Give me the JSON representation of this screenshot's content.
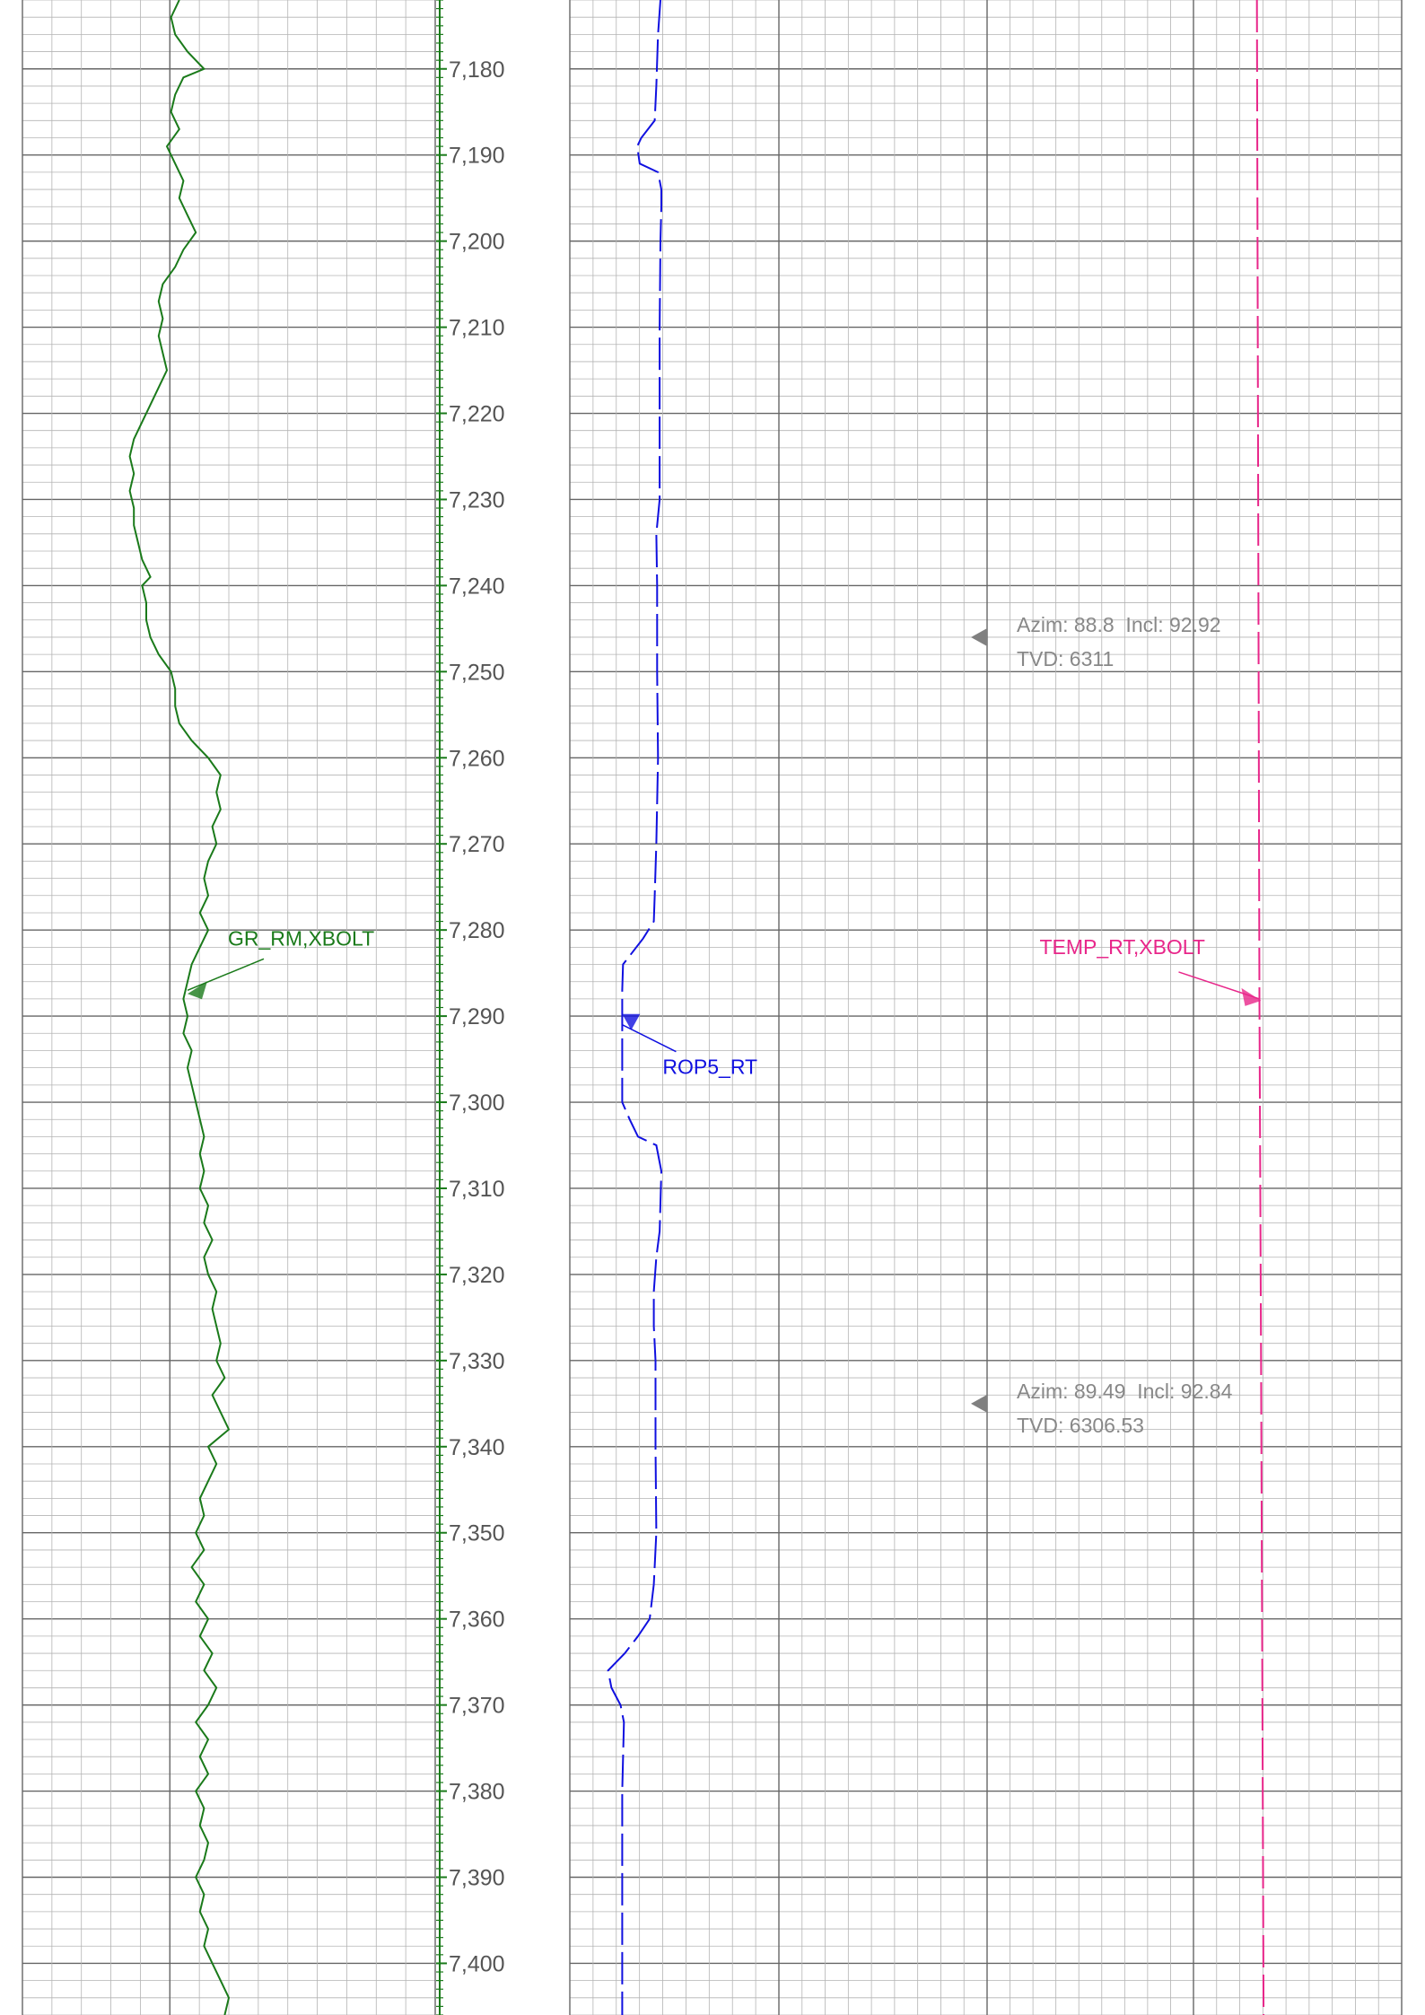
{
  "chart_data": {
    "type": "line",
    "depth_range": [
      7172,
      7406
    ],
    "depth_tick_labels": [
      "7,180",
      "7,190",
      "7,200",
      "7,210",
      "7,220",
      "7,230",
      "7,240",
      "7,250",
      "7,260",
      "7,270",
      "7,280",
      "7,290",
      "7,300",
      "7,310",
      "7,320",
      "7,330",
      "7,340",
      "7,350",
      "7,360",
      "7,370",
      "7,380",
      "7,390",
      "7,400"
    ],
    "depth_ticks": [
      7180,
      7190,
      7200,
      7210,
      7220,
      7230,
      7240,
      7250,
      7260,
      7270,
      7280,
      7290,
      7300,
      7310,
      7320,
      7330,
      7340,
      7350,
      7360,
      7370,
      7380,
      7390,
      7400
    ],
    "grid": true,
    "series": [
      {
        "name": "GR_RM,XBOLT",
        "color": "#1a7a1a",
        "line_style": "solid",
        "track": "left",
        "label_depth": 7287,
        "points": [
          [
            7172,
            0.38
          ],
          [
            7174,
            0.36
          ],
          [
            7176,
            0.37
          ],
          [
            7178,
            0.4
          ],
          [
            7180,
            0.44
          ],
          [
            7181,
            0.39
          ],
          [
            7183,
            0.37
          ],
          [
            7185,
            0.36
          ],
          [
            7187,
            0.38
          ],
          [
            7189,
            0.35
          ],
          [
            7191,
            0.37
          ],
          [
            7193,
            0.39
          ],
          [
            7195,
            0.38
          ],
          [
            7197,
            0.4
          ],
          [
            7199,
            0.42
          ],
          [
            7201,
            0.39
          ],
          [
            7203,
            0.37
          ],
          [
            7205,
            0.34
          ],
          [
            7207,
            0.33
          ],
          [
            7209,
            0.34
          ],
          [
            7211,
            0.33
          ],
          [
            7213,
            0.34
          ],
          [
            7215,
            0.35
          ],
          [
            7217,
            0.33
          ],
          [
            7219,
            0.31
          ],
          [
            7221,
            0.29
          ],
          [
            7223,
            0.27
          ],
          [
            7225,
            0.26
          ],
          [
            7227,
            0.27
          ],
          [
            7229,
            0.26
          ],
          [
            7231,
            0.27
          ],
          [
            7233,
            0.27
          ],
          [
            7235,
            0.28
          ],
          [
            7237,
            0.29
          ],
          [
            7239,
            0.31
          ],
          [
            7240,
            0.29
          ],
          [
            7242,
            0.3
          ],
          [
            7244,
            0.3
          ],
          [
            7246,
            0.31
          ],
          [
            7248,
            0.33
          ],
          [
            7250,
            0.36
          ],
          [
            7252,
            0.37
          ],
          [
            7254,
            0.37
          ],
          [
            7256,
            0.38
          ],
          [
            7258,
            0.41
          ],
          [
            7260,
            0.45
          ],
          [
            7262,
            0.48
          ],
          [
            7264,
            0.47
          ],
          [
            7266,
            0.48
          ],
          [
            7268,
            0.46
          ],
          [
            7270,
            0.47
          ],
          [
            7272,
            0.45
          ],
          [
            7274,
            0.44
          ],
          [
            7276,
            0.45
          ],
          [
            7278,
            0.43
          ],
          [
            7280,
            0.45
          ],
          [
            7282,
            0.43
          ],
          [
            7284,
            0.41
          ],
          [
            7286,
            0.4
          ],
          [
            7288,
            0.39
          ],
          [
            7290,
            0.4
          ],
          [
            7292,
            0.39
          ],
          [
            7294,
            0.41
          ],
          [
            7296,
            0.4
          ],
          [
            7298,
            0.41
          ],
          [
            7300,
            0.42
          ],
          [
            7302,
            0.43
          ],
          [
            7304,
            0.44
          ],
          [
            7306,
            0.43
          ],
          [
            7308,
            0.44
          ],
          [
            7310,
            0.43
          ],
          [
            7312,
            0.45
          ],
          [
            7314,
            0.44
          ],
          [
            7316,
            0.46
          ],
          [
            7318,
            0.44
          ],
          [
            7320,
            0.45
          ],
          [
            7322,
            0.47
          ],
          [
            7324,
            0.46
          ],
          [
            7326,
            0.47
          ],
          [
            7328,
            0.48
          ],
          [
            7330,
            0.47
          ],
          [
            7332,
            0.49
          ],
          [
            7334,
            0.46
          ],
          [
            7336,
            0.48
          ],
          [
            7338,
            0.5
          ],
          [
            7340,
            0.45
          ],
          [
            7342,
            0.47
          ],
          [
            7344,
            0.45
          ],
          [
            7346,
            0.43
          ],
          [
            7348,
            0.44
          ],
          [
            7350,
            0.42
          ],
          [
            7352,
            0.44
          ],
          [
            7354,
            0.41
          ],
          [
            7356,
            0.44
          ],
          [
            7358,
            0.42
          ],
          [
            7360,
            0.45
          ],
          [
            7362,
            0.43
          ],
          [
            7364,
            0.46
          ],
          [
            7366,
            0.44
          ],
          [
            7368,
            0.47
          ],
          [
            7370,
            0.45
          ],
          [
            7372,
            0.42
          ],
          [
            7374,
            0.45
          ],
          [
            7376,
            0.43
          ],
          [
            7378,
            0.45
          ],
          [
            7380,
            0.42
          ],
          [
            7382,
            0.44
          ],
          [
            7384,
            0.43
          ],
          [
            7386,
            0.45
          ],
          [
            7388,
            0.44
          ],
          [
            7390,
            0.42
          ],
          [
            7392,
            0.44
          ],
          [
            7394,
            0.43
          ],
          [
            7396,
            0.45
          ],
          [
            7398,
            0.44
          ],
          [
            7400,
            0.46
          ],
          [
            7402,
            0.48
          ],
          [
            7404,
            0.5
          ],
          [
            7406,
            0.49
          ]
        ]
      },
      {
        "name": "ROP5_RT",
        "color": "#1010e0",
        "line_style": "dashed",
        "track": "right",
        "label_depth": 7291,
        "points": [
          [
            7172,
            0.109
          ],
          [
            7176,
            0.106
          ],
          [
            7182,
            0.104
          ],
          [
            7186,
            0.102
          ],
          [
            7188,
            0.086
          ],
          [
            7189,
            0.081
          ],
          [
            7191,
            0.084
          ],
          [
            7192,
            0.106
          ],
          [
            7194,
            0.11
          ],
          [
            7196,
            0.11
          ],
          [
            7200,
            0.109
          ],
          [
            7210,
            0.108
          ],
          [
            7220,
            0.108
          ],
          [
            7230,
            0.108
          ],
          [
            7234,
            0.104
          ],
          [
            7240,
            0.105
          ],
          [
            7250,
            0.105
          ],
          [
            7260,
            0.106
          ],
          [
            7270,
            0.104
          ],
          [
            7276,
            0.102
          ],
          [
            7279,
            0.101
          ],
          [
            7281,
            0.088
          ],
          [
            7284,
            0.064
          ],
          [
            7287,
            0.063
          ],
          [
            7295,
            0.063
          ],
          [
            7300,
            0.063
          ],
          [
            7302,
            0.072
          ],
          [
            7304,
            0.082
          ],
          [
            7305,
            0.104
          ],
          [
            7308,
            0.11
          ],
          [
            7315,
            0.108
          ],
          [
            7318,
            0.104
          ],
          [
            7322,
            0.101
          ],
          [
            7326,
            0.101
          ],
          [
            7330,
            0.103
          ],
          [
            7340,
            0.103
          ],
          [
            7350,
            0.104
          ],
          [
            7356,
            0.101
          ],
          [
            7360,
            0.096
          ],
          [
            7362,
            0.082
          ],
          [
            7364,
            0.066
          ],
          [
            7366,
            0.046
          ],
          [
            7368,
            0.05
          ],
          [
            7370,
            0.061
          ],
          [
            7372,
            0.065
          ],
          [
            7380,
            0.063
          ],
          [
            7390,
            0.063
          ],
          [
            7400,
            0.063
          ],
          [
            7406,
            0.063
          ]
        ]
      },
      {
        "name": "TEMP_RT,XBOLT",
        "color": "#e8268a",
        "line_style": "dashed",
        "track": "right",
        "label_depth": 7288,
        "points": [
          [
            7172,
            0.826
          ],
          [
            7250,
            0.828
          ],
          [
            7288,
            0.829
          ],
          [
            7330,
            0.831
          ],
          [
            7380,
            0.833
          ],
          [
            7406,
            0.834
          ]
        ]
      }
    ],
    "annotations": [
      {
        "depth": 7246,
        "line1": "Azim: 88.8  Incl: 92.92",
        "line2": "TVD: 6311"
      },
      {
        "depth": 7335,
        "line1": "Azim: 89.49  Incl: 92.84",
        "line2": "TVD: 6306.53"
      }
    ]
  }
}
